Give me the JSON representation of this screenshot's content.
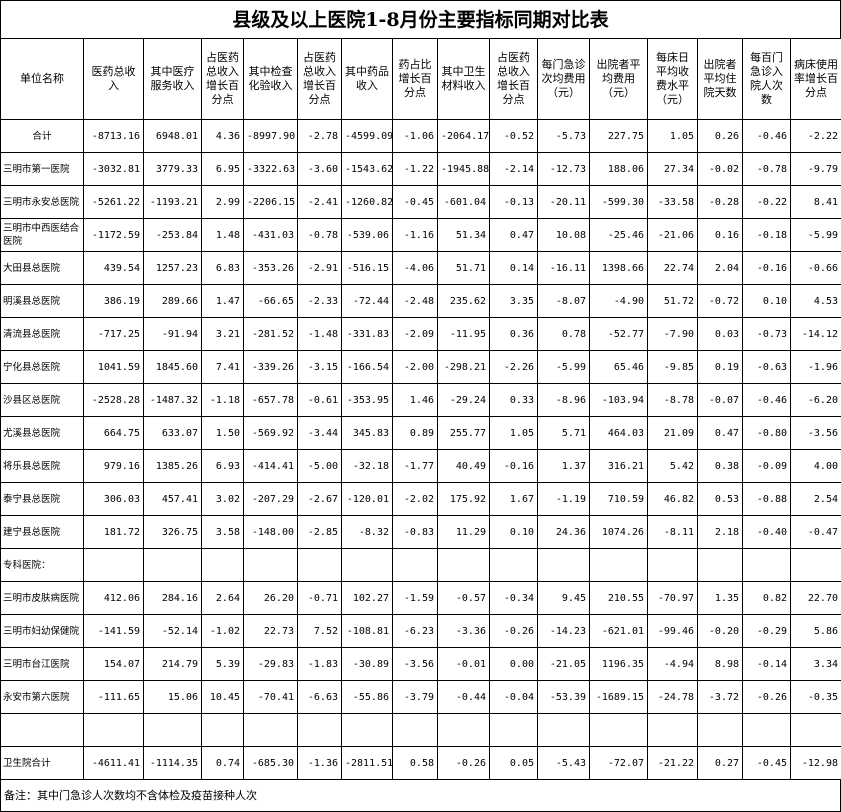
{
  "title": "县级及以上医院1-8月份主要指标同期对比表",
  "table": {
    "headers": [
      "单位名称",
      "医药总收入",
      "其中医疗服务收入",
      "占医药总收入增长百分点",
      "其中检查化验收入",
      "占医药总收入增长百分点",
      "其中药品收入",
      "药占比增长百分点",
      "其中卫生材料收入",
      "占医药总收入增长百分点",
      "每门急诊次均费用（元）",
      "出院者平均费用（元）",
      "每床日平均收费水平（元）",
      "出院者平均住院天数",
      "每百门急诊入院人次数",
      "病床使用率增长百分点"
    ],
    "rows": [
      {
        "name": "合计",
        "values": [
          "-8713.16",
          "6948.01",
          "4.36",
          "-8997.90",
          "-2.78",
          "-4599.09",
          "-1.06",
          "-2064.17",
          "-0.52",
          "-5.73",
          "227.75",
          "1.05",
          "0.26",
          "-0.46",
          "-2.22"
        ]
      },
      {
        "name": "三明市第一医院",
        "values": [
          "-3032.81",
          "3779.33",
          "6.95",
          "-3322.63",
          "-3.60",
          "-1543.62",
          "-1.22",
          "-1945.88",
          "-2.14",
          "-12.73",
          "188.06",
          "27.34",
          "-0.02",
          "-0.78",
          "-9.79"
        ]
      },
      {
        "name": "三明市永安总医院",
        "values": [
          "-5261.22",
          "-1193.21",
          "2.99",
          "-2206.15",
          "-2.41",
          "-1260.82",
          "-0.45",
          "-601.04",
          "-0.13",
          "-20.11",
          "-599.30",
          "-33.58",
          "-0.28",
          "-0.22",
          "8.41"
        ]
      },
      {
        "name": "三明市中西医结合医院",
        "values": [
          "-1172.59",
          "-253.84",
          "1.48",
          "-431.03",
          "-0.78",
          "-539.06",
          "-1.16",
          "51.34",
          "0.47",
          "10.08",
          "-25.46",
          "-21.06",
          "0.16",
          "-0.18",
          "-5.99"
        ]
      },
      {
        "name": "大田县总医院",
        "values": [
          "439.54",
          "1257.23",
          "6.83",
          "-353.26",
          "-2.91",
          "-516.15",
          "-4.06",
          "51.71",
          "0.14",
          "-16.11",
          "1398.66",
          "22.74",
          "2.04",
          "-0.16",
          "-0.66"
        ]
      },
      {
        "name": "明溪县总医院",
        "values": [
          "386.19",
          "289.66",
          "1.47",
          "-66.65",
          "-2.33",
          "-72.44",
          "-2.48",
          "235.62",
          "3.35",
          "-8.07",
          "-4.90",
          "51.72",
          "-0.72",
          "0.10",
          "4.53"
        ]
      },
      {
        "name": "清流县总医院",
        "values": [
          "-717.25",
          "-91.94",
          "3.21",
          "-281.52",
          "-1.48",
          "-331.83",
          "-2.09",
          "-11.95",
          "0.36",
          "0.78",
          "-52.77",
          "-7.90",
          "0.03",
          "-0.73",
          "-14.12"
        ]
      },
      {
        "name": "宁化县总医院",
        "values": [
          "1041.59",
          "1845.60",
          "7.41",
          "-339.26",
          "-3.15",
          "-166.54",
          "-2.00",
          "-298.21",
          "-2.26",
          "-5.99",
          "65.46",
          "-9.85",
          "0.19",
          "-0.63",
          "-1.96"
        ]
      },
      {
        "name": "沙县区总医院",
        "values": [
          "-2528.28",
          "-1487.32",
          "-1.18",
          "-657.78",
          "-0.61",
          "-353.95",
          "1.46",
          "-29.24",
          "0.33",
          "-8.96",
          "-103.94",
          "-8.78",
          "-0.07",
          "-0.46",
          "-6.20"
        ]
      },
      {
        "name": "尤溪县总医院",
        "values": [
          "664.75",
          "633.07",
          "1.50",
          "-569.92",
          "-3.44",
          "345.83",
          "0.89",
          "255.77",
          "1.05",
          "5.71",
          "464.03",
          "21.09",
          "0.47",
          "-0.80",
          "-3.56"
        ]
      },
      {
        "name": "将乐县总医院",
        "values": [
          "979.16",
          "1385.26",
          "6.93",
          "-414.41",
          "-5.00",
          "-32.18",
          "-1.77",
          "40.49",
          "-0.16",
          "1.37",
          "316.21",
          "5.42",
          "0.38",
          "-0.09",
          "4.00"
        ]
      },
      {
        "name": "泰宁县总医院",
        "values": [
          "306.03",
          "457.41",
          "3.02",
          "-207.29",
          "-2.67",
          "-120.01",
          "-2.02",
          "175.92",
          "1.67",
          "-1.19",
          "710.59",
          "46.82",
          "0.53",
          "-0.88",
          "2.54"
        ]
      },
      {
        "name": "建宁县总医院",
        "values": [
          "181.72",
          "326.75",
          "3.58",
          "-148.00",
          "-2.85",
          "-8.32",
          "-0.83",
          "11.29",
          "0.10",
          "24.36",
          "1074.26",
          "-8.11",
          "2.18",
          "-0.40",
          "-0.47"
        ]
      }
    ],
    "specialty": {
      "label": "专科医院：",
      "rows": [
        {
          "name": "三明市皮肤病医院",
          "values": [
            "412.06",
            "284.16",
            "2.64",
            "26.20",
            "-0.71",
            "102.27",
            "-1.59",
            "-0.57",
            "-0.34",
            "9.45",
            "210.55",
            "-70.97",
            "1.35",
            "0.82",
            "22.70"
          ]
        },
        {
          "name": "三明市妇幼保健院",
          "values": [
            "-141.59",
            "-52.14",
            "-1.02",
            "22.73",
            "7.52",
            "-108.81",
            "-6.23",
            "-3.36",
            "-0.26",
            "-14.23",
            "-621.01",
            "-99.46",
            "-0.20",
            "-0.29",
            "5.86"
          ]
        },
        {
          "name": "三明市台江医院",
          "values": [
            "154.07",
            "214.79",
            "5.39",
            "-29.83",
            "-1.83",
            "-30.89",
            "-3.56",
            "-0.01",
            "0.00",
            "-21.05",
            "1196.35",
            "-4.94",
            "8.98",
            "-0.14",
            "3.34"
          ]
        },
        {
          "name": "永安市第六医院",
          "values": [
            "-111.65",
            "15.06",
            "10.45",
            "-70.41",
            "-6.63",
            "-55.86",
            "-3.79",
            "-0.44",
            "-0.04",
            "-53.39",
            "-1689.15",
            "-24.78",
            "-3.72",
            "-0.26",
            "-0.35"
          ]
        }
      ]
    },
    "township_total": {
      "name": "卫生院合计",
      "values": [
        "-4611.41",
        "-1114.35",
        "0.74",
        "-685.30",
        "-1.36",
        "-2811.51",
        "0.58",
        "-0.26",
        "0.05",
        "-5.43",
        "-72.07",
        "-21.22",
        "0.27",
        "-0.45",
        "-12.98"
      ]
    }
  },
  "footnote": "备注：其中门急诊人次数均不含体检及疫苗接种人次"
}
